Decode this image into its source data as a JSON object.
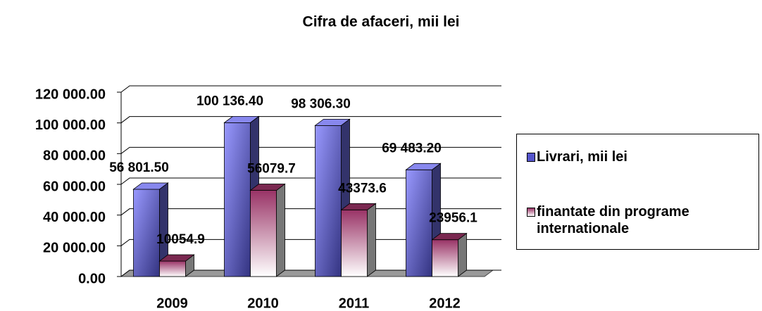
{
  "chart_data": {
    "type": "bar3d",
    "title": "Cifra de afaceri, mii lei",
    "categories": [
      "2009",
      "2010",
      "2011",
      "2012"
    ],
    "series": [
      {
        "name": "Livrari, mii lei",
        "color": "#9999ff",
        "values": [
          56801.5,
          100136.4,
          98306.3,
          69483.2
        ],
        "value_labels": [
          "56 801.50",
          "100 136.40",
          "98 306.30",
          "69 483.20"
        ]
      },
      {
        "name": "finantate din programe internationale",
        "color": "#993366",
        "values": [
          10054.9,
          56079.7,
          43373.6,
          23956.1
        ]
      }
    ],
    "ylim": [
      0,
      120000
    ],
    "yticks": [
      {
        "value": 0,
        "label": "0.00"
      },
      {
        "value": 20000,
        "label": "20 000.00"
      },
      {
        "value": 40000,
        "label": "40 000.00"
      },
      {
        "value": 60000,
        "label": "60 000.00"
      },
      {
        "value": 80000,
        "label": "80 000.00"
      },
      {
        "value": 100000,
        "label": "100 000.00"
      },
      {
        "value": 120000,
        "label": "120 000.00"
      }
    ],
    "grid": true,
    "legend": "right"
  }
}
